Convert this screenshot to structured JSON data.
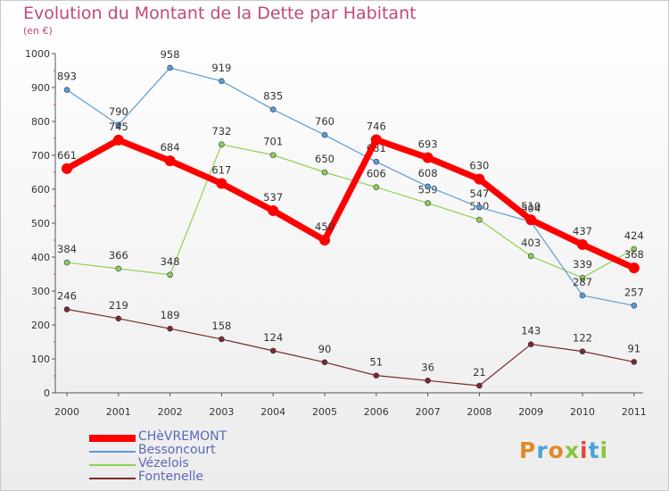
{
  "header": {
    "title": "Evolution du Montant de la Dette par Habitant",
    "unit": "(en €)"
  },
  "logo": {
    "text": "Proxiti",
    "colors": [
      "#e0892b",
      "#4aa3d8",
      "#e0892b",
      "#8bc440",
      "#e0483c",
      "#4aa3d8",
      "#8bc440"
    ]
  },
  "chart_data": {
    "type": "line",
    "title": "Evolution du Montant de la Dette par Habitant",
    "ylabel": "(en €)",
    "xlabel": "",
    "ylim": [
      0,
      1000
    ],
    "yticks": [
      "0",
      "100",
      "200",
      "300",
      "400",
      "500",
      "600",
      "700",
      "800",
      "900",
      "1000"
    ],
    "x": [
      "2000",
      "2001",
      "2002",
      "2003",
      "2004",
      "2005",
      "2006",
      "2007",
      "2008",
      "2009",
      "2010",
      "2011"
    ],
    "grid": false,
    "legend_position": "bottom-left",
    "series": [
      {
        "name": "CHèVREMONT",
        "color": "#ff0000",
        "values": [
          661,
          745,
          684,
          617,
          537,
          450,
          746,
          693,
          630,
          510,
          437,
          368
        ]
      },
      {
        "name": "Bessoncourt",
        "color": "#5b9bd5",
        "values": [
          893,
          790,
          958,
          919,
          835,
          760,
          681,
          608,
          547,
          504,
          287,
          257
        ]
      },
      {
        "name": "Vézelois",
        "color": "#8fd14f",
        "values": [
          384,
          366,
          348,
          732,
          701,
          650,
          606,
          559,
          510,
          403,
          339,
          424
        ]
      },
      {
        "name": "Fontenelle",
        "color": "#7a2a2a",
        "values": [
          246,
          219,
          189,
          158,
          124,
          90,
          51,
          36,
          21,
          143,
          122,
          91
        ]
      }
    ]
  }
}
